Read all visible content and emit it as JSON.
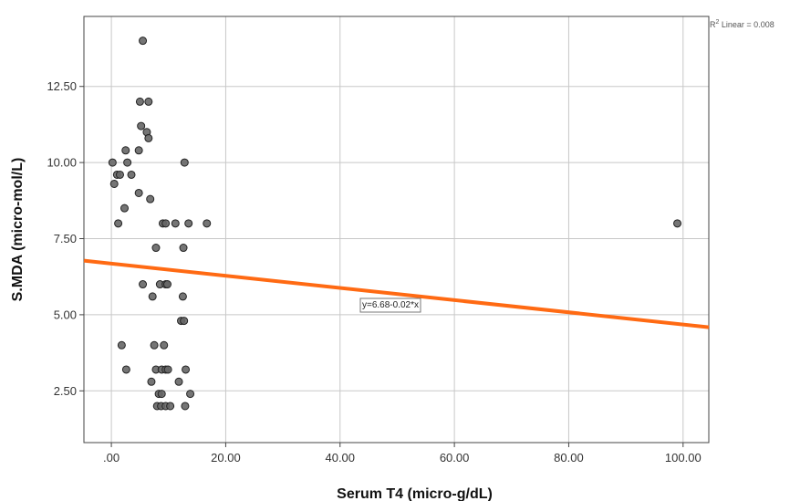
{
  "chart_data": {
    "type": "scatter",
    "xlabel": "Serum T4 (micro-g/dL)",
    "ylabel": "S.MDA (micro-mol/L)",
    "xlim": [
      -4.8,
      104.5
    ],
    "ylim": [
      0.8,
      14.8
    ],
    "x_ticks": [
      0,
      20,
      40,
      60,
      80,
      100
    ],
    "x_tick_labels": [
      ".00",
      "20.00",
      "40.00",
      "60.00",
      "80.00",
      "100.00"
    ],
    "y_ticks": [
      2.5,
      5,
      7.5,
      10,
      12.5
    ],
    "y_tick_labels": [
      "2.50",
      "5.00",
      "7.50",
      "10.00",
      "12.50"
    ],
    "grid": true,
    "point_color": "#666666",
    "fit_line_color": "#ff6a13",
    "fit_line": {
      "intercept": 6.68,
      "slope": -0.02,
      "label": "y=6.68-0.02*x"
    },
    "r2": {
      "prefix": "R",
      "superscript": "2",
      "suffix": " Linear = 0.008"
    },
    "points": [
      [
        5.5,
        14.0
      ],
      [
        5.0,
        12.0
      ],
      [
        6.5,
        12.0
      ],
      [
        5.2,
        11.2
      ],
      [
        6.2,
        11.0
      ],
      [
        6.5,
        10.8
      ],
      [
        2.5,
        10.4
      ],
      [
        4.8,
        10.4
      ],
      [
        0.2,
        10.0
      ],
      [
        2.8,
        10.0
      ],
      [
        12.8,
        10.0
      ],
      [
        1.0,
        9.6
      ],
      [
        1.5,
        9.6
      ],
      [
        3.5,
        9.6
      ],
      [
        0.5,
        9.3
      ],
      [
        4.8,
        9.0
      ],
      [
        6.8,
        8.8
      ],
      [
        2.3,
        8.5
      ],
      [
        1.2,
        8.0
      ],
      [
        9.0,
        8.0
      ],
      [
        9.5,
        8.0
      ],
      [
        11.2,
        8.0
      ],
      [
        13.5,
        8.0
      ],
      [
        16.7,
        8.0
      ],
      [
        99.0,
        8.0
      ],
      [
        7.8,
        7.2
      ],
      [
        12.6,
        7.2
      ],
      [
        5.5,
        6.0
      ],
      [
        8.5,
        6.0
      ],
      [
        9.5,
        6.0
      ],
      [
        9.8,
        6.0
      ],
      [
        7.2,
        5.6
      ],
      [
        12.5,
        5.6
      ],
      [
        12.2,
        4.8
      ],
      [
        12.7,
        4.8
      ],
      [
        1.8,
        4.0
      ],
      [
        7.5,
        4.0
      ],
      [
        9.2,
        4.0
      ],
      [
        2.6,
        3.2
      ],
      [
        7.8,
        3.2
      ],
      [
        8.8,
        3.2
      ],
      [
        9.5,
        3.2
      ],
      [
        9.9,
        3.2
      ],
      [
        13.0,
        3.2
      ],
      [
        7.0,
        2.8
      ],
      [
        11.8,
        2.8
      ],
      [
        8.3,
        2.4
      ],
      [
        8.8,
        2.4
      ],
      [
        13.8,
        2.4
      ],
      [
        8.0,
        2.0
      ],
      [
        8.7,
        2.0
      ],
      [
        9.5,
        2.0
      ],
      [
        10.3,
        2.0
      ],
      [
        12.9,
        2.0
      ]
    ]
  }
}
